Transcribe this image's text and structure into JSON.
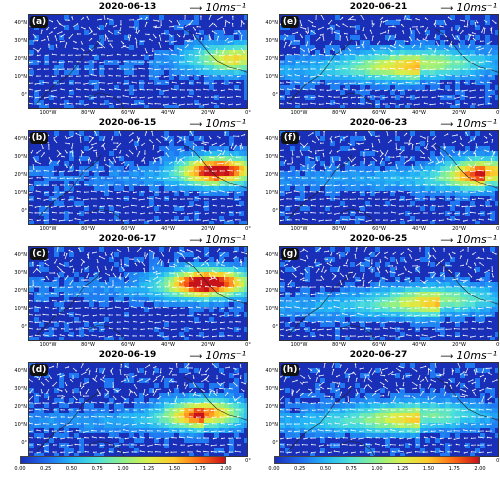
{
  "scale": {
    "arrow": "⟶",
    "value": "10",
    "unit": "ms⁻¹"
  },
  "lat_labels": [
    "40°N",
    "30°N",
    "20°N",
    "10°N",
    "0°"
  ],
  "lon_labels": [
    "100°W",
    "80°W",
    "60°W",
    "40°W",
    "20°W",
    "0°"
  ],
  "colorbar": {
    "ticks": [
      "0.00",
      "0.25",
      "0.50",
      "0.75",
      "1.00",
      "1.25",
      "1.50",
      "1.75",
      "2.00"
    ],
    "colors": [
      "#1a2fb8",
      "#1e6cf0",
      "#23b5f5",
      "#4fe0d8",
      "#8ef08a",
      "#d7f04a",
      "#ffc92b",
      "#ff6a14",
      "#c8121a"
    ]
  },
  "panels": [
    {
      "label": "a",
      "date": "2020-06-13",
      "plume": {
        "lon": -5,
        "lat": 21,
        "intensity": 1.1,
        "spread": 1.2,
        "tail": 0.3
      }
    },
    {
      "label": "b",
      "date": "2020-06-15",
      "plume": {
        "lon": -15,
        "lat": 23,
        "intensity": 1.9,
        "spread": 1.0,
        "tail": 0.5
      }
    },
    {
      "label": "c",
      "date": "2020-06-17",
      "plume": {
        "lon": -20,
        "lat": 25,
        "intensity": 2.0,
        "spread": 1.1,
        "tail": 0.6
      }
    },
    {
      "label": "d",
      "date": "2020-06-19",
      "plume": {
        "lon": -22,
        "lat": 17,
        "intensity": 1.5,
        "spread": 1.0,
        "tail": 0.9
      }
    },
    {
      "label": "e",
      "date": "2020-06-21",
      "plume": {
        "lon": -40,
        "lat": 18,
        "intensity": 0.9,
        "spread": 1.8,
        "tail": 1.2
      }
    },
    {
      "label": "f",
      "date": "2020-06-23",
      "plume": {
        "lon": -8,
        "lat": 22,
        "intensity": 1.4,
        "spread": 1.0,
        "tail": 1.1
      }
    },
    {
      "label": "g",
      "date": "2020-06-25",
      "plume": {
        "lon": -30,
        "lat": 16,
        "intensity": 0.8,
        "spread": 1.6,
        "tail": 1.3
      }
    },
    {
      "label": "h",
      "date": "2020-06-27",
      "plume": {
        "lon": -40,
        "lat": 16,
        "intensity": 0.7,
        "spread": 1.8,
        "tail": 1.4
      }
    }
  ]
}
